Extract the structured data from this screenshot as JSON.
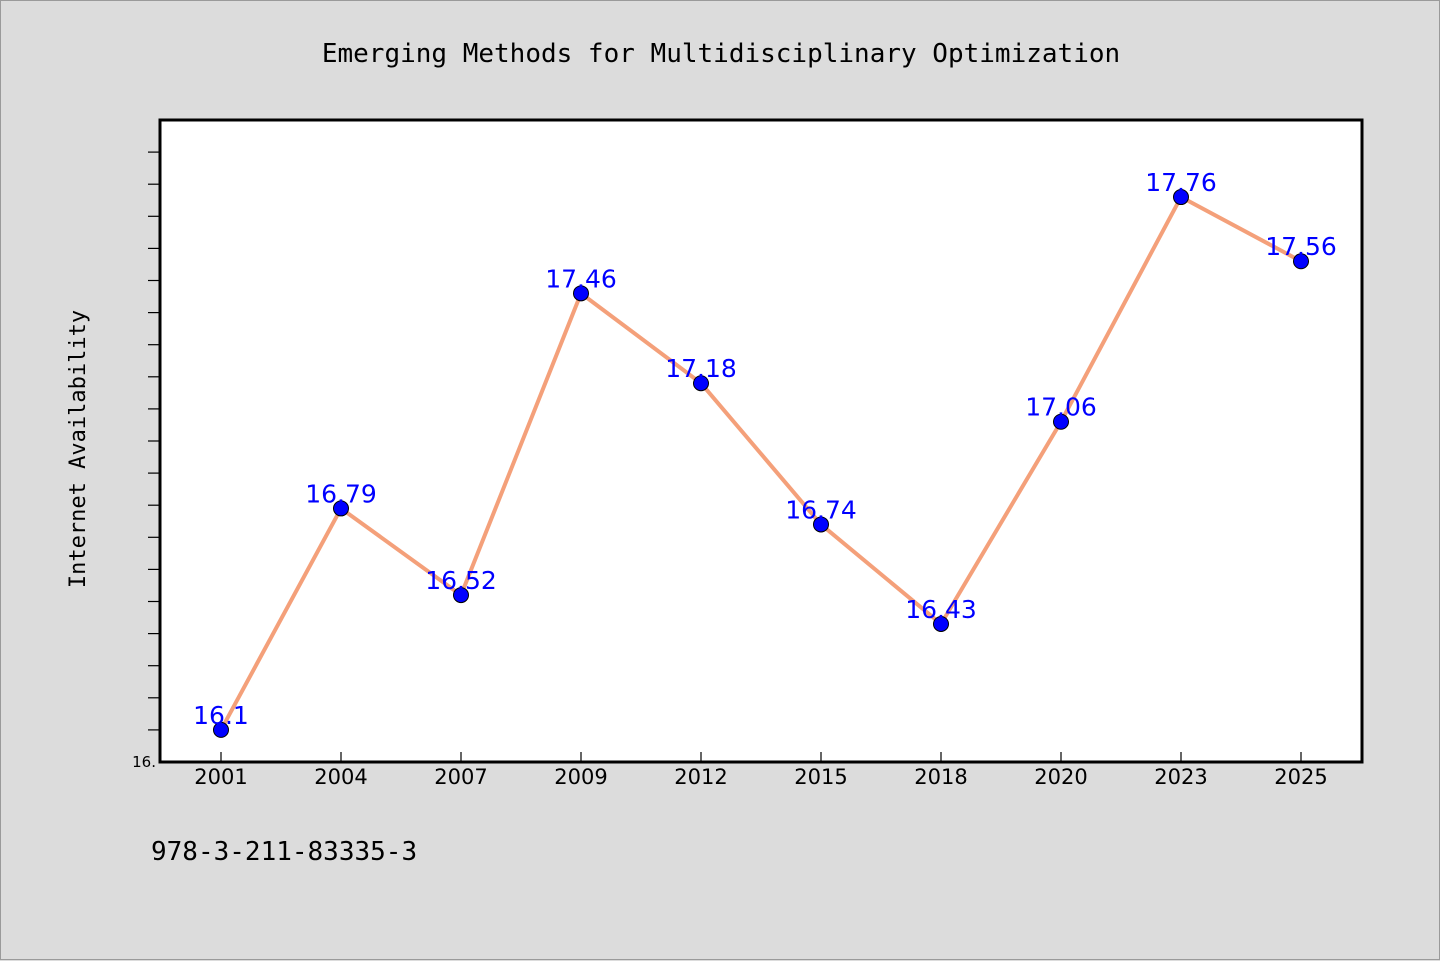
{
  "chart_data": {
    "type": "line",
    "title": "Emerging Methods for Multidisciplinary Optimization",
    "xlabel": "",
    "ylabel": "Internet Availability",
    "categories": [
      "2001",
      "2004",
      "2007",
      "2009",
      "2012",
      "2015",
      "2018",
      "2020",
      "2023",
      "2025"
    ],
    "series": [
      {
        "values": [
          16.1,
          16.79,
          16.52,
          17.46,
          17.18,
          16.74,
          16.43,
          17.06,
          17.76,
          17.56
        ],
        "data_labels": [
          "16.1",
          "16.79",
          "16.52",
          "17.46",
          "17.18",
          "16.74",
          "16.43",
          "17.06",
          "17.76",
          "17.56"
        ],
        "line_color": "#f4a07a",
        "marker_color": "#0000ff",
        "label_color": "#0000ff"
      }
    ],
    "ylim": [
      16.0,
      18.0
    ],
    "y_tick_labels": [
      {
        "value": 16.0,
        "label": "16."
      }
    ],
    "y_minor_tick_step": 0.1,
    "grid": false,
    "legend": "none",
    "background": "#dcdcdc",
    "plot_background": "#ffffff"
  },
  "footer": {
    "id_text": "978-3-211-83335-3"
  }
}
